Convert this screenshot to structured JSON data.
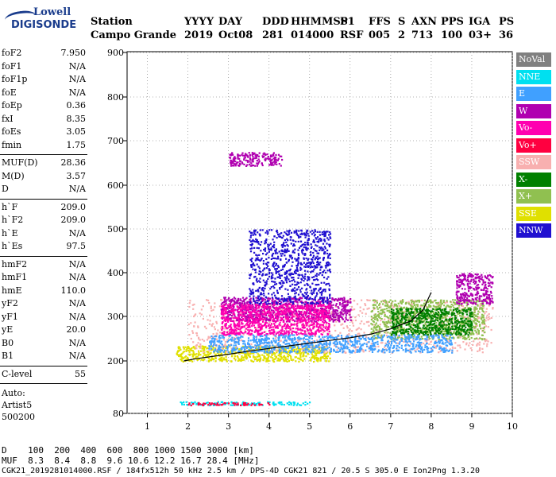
{
  "logo": {
    "line1": "Lowell",
    "line2": "DIGISONDE"
  },
  "header": {
    "labels": [
      "Station",
      "YYYY",
      "DAY",
      "DDD",
      "HHMMSS",
      "P1",
      "FFS",
      "S",
      "AXN",
      "PPS",
      "IGA",
      "PS"
    ],
    "values": [
      "Campo Grande",
      "2019",
      "Oct08",
      "281",
      "014000",
      "RSF",
      "005",
      "2",
      "713",
      "100",
      "03+",
      "36"
    ]
  },
  "params_group1": [
    {
      "name": "foF2",
      "value": "7.950"
    },
    {
      "name": "foF1",
      "value": "N/A"
    },
    {
      "name": "foF1p",
      "value": "N/A"
    },
    {
      "name": "foE",
      "value": "N/A"
    },
    {
      "name": "foEp",
      "value": "0.36"
    },
    {
      "name": "fxI",
      "value": "8.35"
    },
    {
      "name": "foEs",
      "value": "3.05"
    },
    {
      "name": "fmin",
      "value": "1.75"
    }
  ],
  "params_group2": [
    {
      "name": "MUF(D)",
      "value": "28.36"
    },
    {
      "name": "M(D)",
      "value": "3.57"
    },
    {
      "name": "D",
      "value": "N/A"
    }
  ],
  "params_group3": [
    {
      "name": "h`F",
      "value": "209.0"
    },
    {
      "name": "h`F2",
      "value": "209.0"
    },
    {
      "name": "h`E",
      "value": "N/A"
    },
    {
      "name": "h`Es",
      "value": "97.5"
    }
  ],
  "params_group4": [
    {
      "name": "hmF2",
      "value": "N/A"
    },
    {
      "name": "hmF1",
      "value": "N/A"
    },
    {
      "name": "hmE",
      "value": "110.0"
    },
    {
      "name": "yF2",
      "value": "N/A"
    },
    {
      "name": "yF1",
      "value": "N/A"
    },
    {
      "name": "yE",
      "value": "20.0"
    },
    {
      "name": "B0",
      "value": "N/A"
    },
    {
      "name": "B1",
      "value": "N/A"
    }
  ],
  "clevel": {
    "name": "C-level",
    "value": "55"
  },
  "auto": {
    "line1": "Auto:",
    "line2": "Artist5",
    "line3": "500200"
  },
  "bottom": {
    "d_row": "D    100  200  400  600  800 1000 1500 3000 [km]",
    "muf_row": "MUF  8.3  8.4  8.8  9.6 10.6 12.2 16.7 28.4 [MHz]",
    "footer": "CGK21_2019281014000.RSF / 184fx512h 50 kHz 2.5 km / DPS-4D CGK21 821 / 20.5 S 305.0 E Ion2Png 1.3.20"
  },
  "legend": [
    {
      "label": "NoVal",
      "color": "#808080"
    },
    {
      "label": "NNE",
      "color": "#00e0f0"
    },
    {
      "label": "E",
      "color": "#40a0ff"
    },
    {
      "label": "W",
      "color": "#b000b0"
    },
    {
      "label": "Vo-",
      "color": "#ff00b0"
    },
    {
      "label": "Vo+",
      "color": "#ff0040"
    },
    {
      "label": "SSW",
      "color": "#f8b0b0"
    },
    {
      "label": "X-",
      "color": "#008000"
    },
    {
      "label": "X+",
      "color": "#90c050"
    },
    {
      "label": "SSE",
      "color": "#e0e000"
    },
    {
      "label": "NNW",
      "color": "#2010d0"
    }
  ],
  "chart_data": {
    "type": "scatter",
    "title": "",
    "xlabel": "",
    "ylabel": "",
    "xlim": [
      0.5,
      10
    ],
    "ylim": [
      80,
      900
    ],
    "x_ticks": [
      1,
      2,
      3,
      4,
      5,
      6,
      7,
      8,
      9,
      10
    ],
    "y_ticks": [
      80,
      200,
      300,
      400,
      500,
      600,
      700,
      800,
      900
    ],
    "grid": true,
    "legend_position": "right",
    "trace_line": {
      "x": [
        1.9,
        2.2,
        2.6,
        3.0,
        3.5,
        4.0,
        4.5,
        5.0,
        5.5,
        6.0,
        6.5,
        7.0,
        7.5,
        7.8,
        7.95,
        8.0
      ],
      "y": [
        200,
        205,
        210,
        215,
        222,
        228,
        234,
        240,
        246,
        252,
        260,
        272,
        290,
        315,
        345,
        355
      ]
    },
    "scatter_regions": [
      {
        "series": "SSE",
        "x": [
          1.7,
          5.5
        ],
        "y": [
          200,
          235
        ]
      },
      {
        "series": "SSW",
        "x": [
          2.0,
          9.5
        ],
        "y": [
          220,
          340
        ]
      },
      {
        "series": "W",
        "x": [
          2.8,
          6.0
        ],
        "y": [
          290,
          345
        ]
      },
      {
        "series": "Vo-",
        "x": [
          2.8,
          5.5
        ],
        "y": [
          260,
          330
        ]
      },
      {
        "series": "X+",
        "x": [
          6.5,
          9.3
        ],
        "y": [
          250,
          340
        ]
      },
      {
        "series": "X-",
        "x": [
          7.0,
          9.0
        ],
        "y": [
          260,
          320
        ]
      },
      {
        "series": "E",
        "x": [
          2.5,
          8.5
        ],
        "y": [
          220,
          260
        ]
      },
      {
        "series": "NNE",
        "x": [
          1.8,
          5.0
        ],
        "y": [
          100,
          108
        ]
      },
      {
        "series": "Vo+",
        "x": [
          2.0,
          4.0
        ],
        "y": [
          100,
          106
        ]
      },
      {
        "series": "NNW",
        "x": [
          3.5,
          5.5
        ],
        "y": [
          330,
          500
        ]
      },
      {
        "series": "W",
        "x": [
          8.6,
          9.5
        ],
        "y": [
          330,
          400
        ]
      },
      {
        "series": "W",
        "x": [
          3.0,
          4.3
        ],
        "y": [
          645,
          675
        ]
      }
    ]
  }
}
